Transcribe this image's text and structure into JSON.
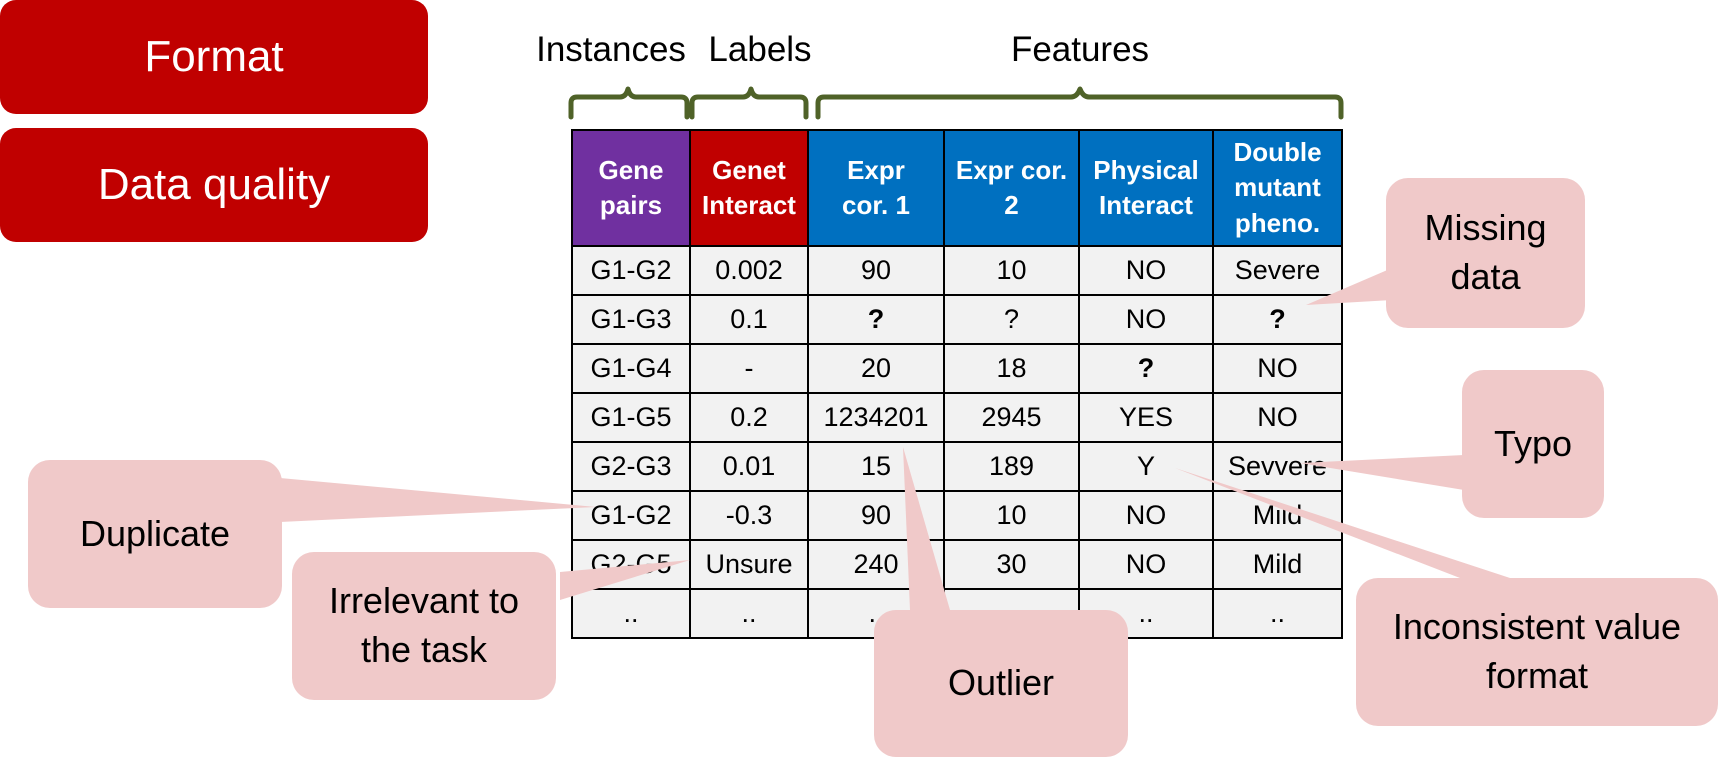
{
  "buttons": {
    "format": "Format",
    "data_quality": "Data quality"
  },
  "groups": {
    "instances": "Instances",
    "labels": "Labels",
    "features": "Features"
  },
  "table": {
    "headers": [
      [
        "Gene",
        "pairs"
      ],
      [
        "Genet",
        "Interact"
      ],
      [
        "Expr",
        "cor. 1"
      ],
      [
        "Expr cor.",
        "2"
      ],
      [
        "Physical",
        "Interact"
      ],
      [
        "Double",
        "mutant",
        "pheno."
      ]
    ],
    "rows": [
      [
        "G1-G2",
        "0.002",
        "90",
        "10",
        "NO",
        "Severe"
      ],
      [
        "G1-G3",
        "0.1",
        "?",
        "?",
        "NO",
        "?"
      ],
      [
        "G1-G4",
        "-",
        "20",
        "18",
        "?",
        "NO"
      ],
      [
        "G1-G5",
        "0.2",
        "1234201",
        "2945",
        "YES",
        "NO"
      ],
      [
        "G2-G3",
        "0.01",
        "15",
        "189",
        "Y",
        "Sevvere"
      ],
      [
        "G1-G2",
        "-0.3",
        "90",
        "10",
        "NO",
        "Mild"
      ],
      [
        "G2-G5",
        "Unsure",
        "240",
        "30",
        "NO",
        "Mild"
      ],
      [
        "..",
        "..",
        "..",
        "..",
        "..",
        ".."
      ]
    ]
  },
  "callouts": {
    "missing_data": [
      "Missing",
      "data"
    ],
    "typo": "Typo",
    "duplicate": "Duplicate",
    "irrelevant": [
      "Irrelevant to",
      "the task"
    ],
    "outlier": "Outlier",
    "inconsistent": [
      "Inconsistent value",
      "format"
    ]
  },
  "colors": {
    "button_red": "#c00000",
    "instances_purple": "#7030a0",
    "labels_red": "#c00000",
    "features_blue": "#0070c0",
    "bracket_green": "#4f6228",
    "callout_pink": "#f0c9c9",
    "cell_gray": "#f2f2f2"
  }
}
